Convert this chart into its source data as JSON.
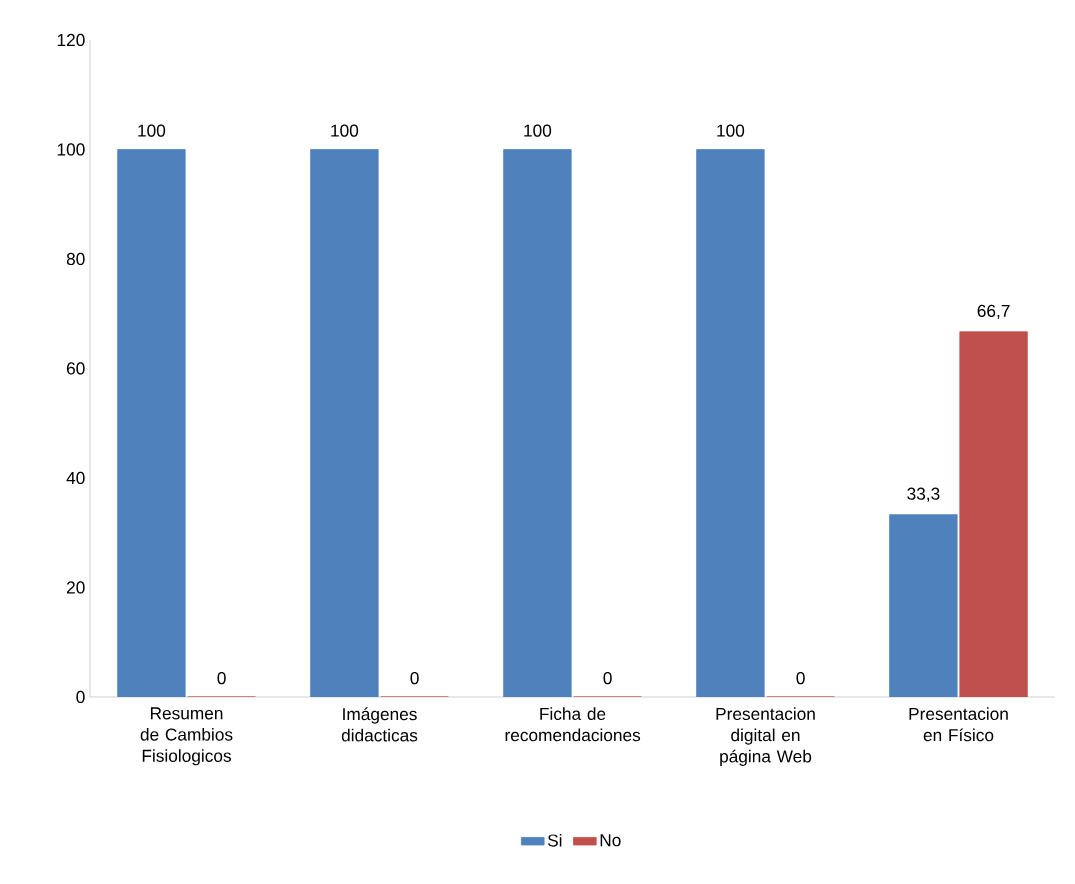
{
  "chart_data": {
    "type": "bar",
    "categories": [
      "Resumen de Cambios Fisiologicos",
      "Imágenes didacticas",
      "Ficha de recomendaciones",
      "Presentacion digital en página Web",
      "Presentacion en Físico"
    ],
    "series": [
      {
        "name": "Si",
        "color": "#4f81bd",
        "values": [
          100,
          100,
          100,
          100,
          33.3
        ],
        "value_labels": [
          "100",
          "100",
          "100",
          "100",
          "33,3"
        ]
      },
      {
        "name": "No",
        "color": "#c0504d",
        "values": [
          0,
          0,
          0,
          0,
          66.7
        ],
        "value_labels": [
          "0",
          "0",
          "0",
          "0",
          "66,7"
        ]
      }
    ],
    "ylim": [
      0,
      120
    ],
    "yticks": [
      0,
      20,
      40,
      60,
      80,
      100,
      120
    ],
    "legend": "bottom"
  }
}
